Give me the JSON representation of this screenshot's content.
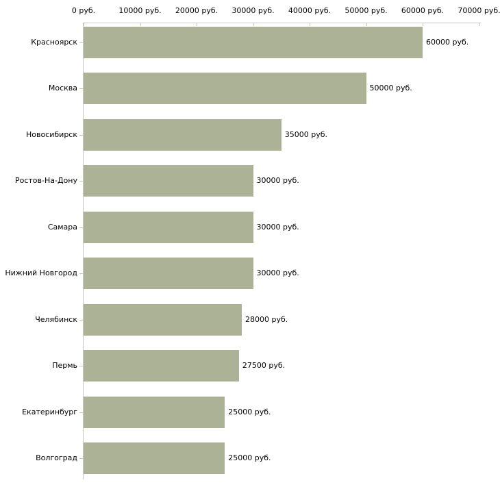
{
  "chart_data": {
    "type": "bar",
    "orientation": "horizontal",
    "title": "",
    "xlabel": "",
    "ylabel": "",
    "grid": false,
    "legend": null,
    "categories": [
      "Красноярск",
      "Москва",
      "Новосибирск",
      "Ростов-На-Дону",
      "Самара",
      "Нижний Новгород",
      "Челябинск",
      "Пермь",
      "Екатеринбург",
      "Волгоград"
    ],
    "values": [
      60000,
      50000,
      35000,
      30000,
      30000,
      30000,
      28000,
      27500,
      25000,
      25000
    ],
    "value_labels": [
      "60000 руб.",
      "50000 руб.",
      "35000 руб.",
      "30000 руб.",
      "30000 руб.",
      "30000 руб.",
      "28000 руб.",
      "27500 руб.",
      "25000 руб.",
      "25000 руб."
    ],
    "xlim": [
      0,
      70000
    ],
    "x_ticks": [
      0,
      10000,
      20000,
      30000,
      40000,
      50000,
      60000,
      70000
    ],
    "x_tick_labels": [
      "0 руб.",
      "10000 руб.",
      "20000 руб.",
      "30000 руб.",
      "40000 руб.",
      "50000 руб.",
      "60000 руб.",
      "70000 руб."
    ],
    "colors": {
      "bar": "#acb296",
      "axis_line": "#c8c8c8",
      "tick_mark": "#c8c8a0",
      "text": "#000000",
      "background": "#ffffff"
    }
  }
}
